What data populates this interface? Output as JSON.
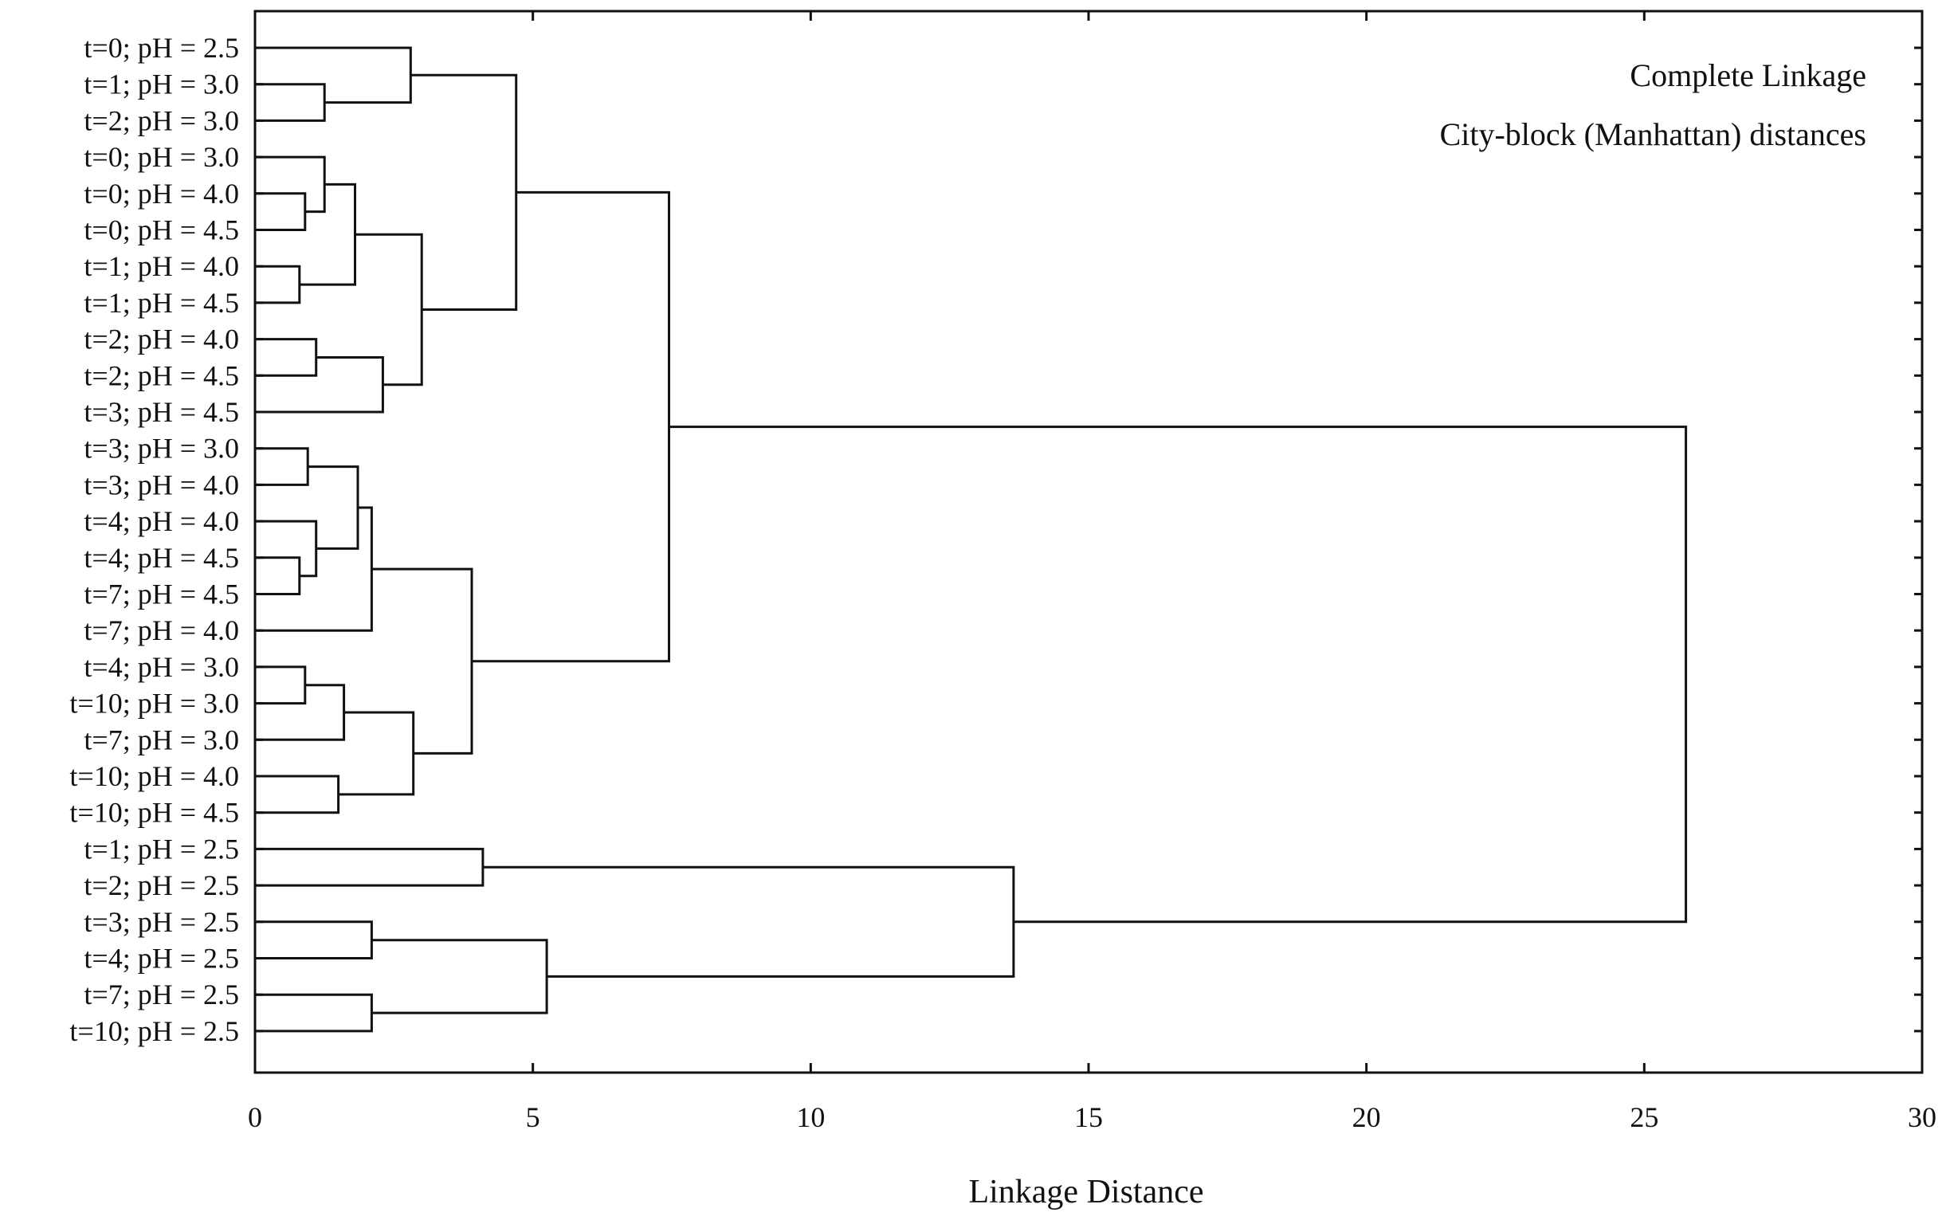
{
  "chart_data": {
    "type": "dendrogram",
    "xlabel": "Linkage Distance",
    "xlim": [
      0,
      30
    ],
    "xticks": [
      0,
      5,
      10,
      15,
      20,
      25,
      30
    ],
    "annotations": [
      "Complete Linkage",
      "City-block (Manhattan) distances"
    ],
    "leaves": [
      "t=0; pH = 2.5",
      "t=1; pH = 3.0",
      "t=2; pH = 3.0",
      "t=0; pH = 3.0",
      "t=0; pH = 4.0",
      "t=0; pH = 4.5",
      "t=1; pH = 4.0",
      "t=1; pH = 4.5",
      "t=2; pH = 4.0",
      "t=2; pH = 4.5",
      "t=3; pH = 4.5",
      "t=3; pH = 3.0",
      "t=3; pH = 4.0",
      "t=4; pH = 4.0",
      "t=4; pH = 4.5",
      "t=7; pH = 4.5",
      "t=7; pH = 4.0",
      "t=4; pH = 3.0",
      "t=10; pH = 3.0",
      "t=7; pH = 3.0",
      "t=10; pH = 4.0",
      "t=10; pH = 4.5",
      "t=1; pH = 2.5",
      "t=2; pH = 2.5",
      "t=3; pH = 2.5",
      "t=4; pH = 2.5",
      "t=7; pH = 2.5",
      "t=10; pH = 2.5"
    ],
    "merges": [
      {
        "left": "L1",
        "right": "L2",
        "distance": 1.25
      },
      {
        "left": "L0",
        "right": "M0",
        "distance": 2.8
      },
      {
        "left": "L4",
        "right": "L5",
        "distance": 0.9
      },
      {
        "left": "L3",
        "right": "M2",
        "distance": 1.25
      },
      {
        "left": "L6",
        "right": "L7",
        "distance": 0.8
      },
      {
        "left": "M3",
        "right": "M4",
        "distance": 1.8
      },
      {
        "left": "L8",
        "right": "L9",
        "distance": 1.1
      },
      {
        "left": "M6",
        "right": "L10",
        "distance": 2.3
      },
      {
        "left": "M5",
        "right": "M7",
        "distance": 3.0
      },
      {
        "left": "M1",
        "right": "M8",
        "distance": 4.7
      },
      {
        "left": "L11",
        "right": "L12",
        "distance": 0.95
      },
      {
        "left": "L14",
        "right": "L15",
        "distance": 0.8
      },
      {
        "left": "L13",
        "right": "M11",
        "distance": 1.1
      },
      {
        "left": "M10",
        "right": "M12",
        "distance": 1.85
      },
      {
        "left": "M13",
        "right": "L16",
        "distance": 2.1
      },
      {
        "left": "L17",
        "right": "L18",
        "distance": 0.9
      },
      {
        "left": "M15",
        "right": "L19",
        "distance": 1.6
      },
      {
        "left": "L20",
        "right": "L21",
        "distance": 1.5
      },
      {
        "left": "M16",
        "right": "M17",
        "distance": 2.85
      },
      {
        "left": "M14",
        "right": "M18",
        "distance": 3.9
      },
      {
        "left": "M9",
        "right": "M19",
        "distance": 7.45
      },
      {
        "left": "L22",
        "right": "L23",
        "distance": 4.1
      },
      {
        "left": "L24",
        "right": "L25",
        "distance": 2.1
      },
      {
        "left": "L26",
        "right": "L27",
        "distance": 2.1
      },
      {
        "left": "M22",
        "right": "M23",
        "distance": 5.25
      },
      {
        "left": "M21",
        "right": "M24",
        "distance": 13.65
      },
      {
        "left": "M20",
        "right": "M25",
        "distance": 25.75
      }
    ]
  }
}
